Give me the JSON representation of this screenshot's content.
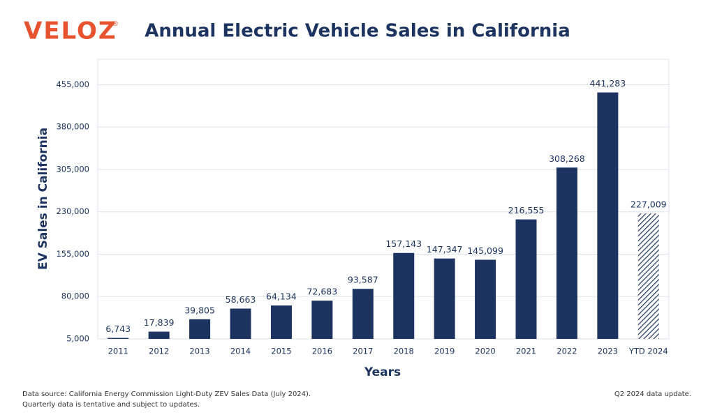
{
  "brand": "VELOZ",
  "brand_mark": "®",
  "chart_data": {
    "type": "bar",
    "title": "Annual Electric Vehicle Sales in California",
    "x_label": "Years",
    "y_label": "EV Sales in California",
    "categories": [
      "2011",
      "2012",
      "2013",
      "2014",
      "2015",
      "2016",
      "2017",
      "2018",
      "2019",
      "2020",
      "2021",
      "2022",
      "2023",
      "YTD 2024"
    ],
    "values": [
      6743,
      17839,
      39805,
      58663,
      64134,
      72683,
      93587,
      157143,
      147347,
      145099,
      216555,
      308268,
      441283,
      227009
    ],
    "value_labels": [
      "6,743",
      "17,839",
      "39,805",
      "58,663",
      "64,134",
      "72,683",
      "93,587",
      "157,143",
      "147,347",
      "145,099",
      "216,555",
      "308,268",
      "441,283",
      "227,009"
    ],
    "patterns": [
      "solid",
      "solid",
      "solid",
      "solid",
      "solid",
      "solid",
      "solid",
      "solid",
      "solid",
      "solid",
      "solid",
      "solid",
      "solid",
      "hatch"
    ],
    "color": "#1d3461",
    "ylim": [
      5000,
      500000
    ],
    "yticks": [
      {
        "value": 5000,
        "label": "5,000"
      },
      {
        "value": 80000,
        "label": "80,000"
      },
      {
        "value": 155000,
        "label": "155,000"
      },
      {
        "value": 230000,
        "label": "230,000"
      },
      {
        "value": 305000,
        "label": "305,000"
      },
      {
        "value": 380000,
        "label": "380,000"
      },
      {
        "value": 455000,
        "label": "455,000"
      }
    ],
    "grid": true
  },
  "footer": {
    "source": "Data source: California Energy Commission Light-Duty ZEV Sales Data (July 2024).",
    "note": "Quarterly data is tentative and subject to updates.",
    "update": "Q2 2024 data update."
  }
}
